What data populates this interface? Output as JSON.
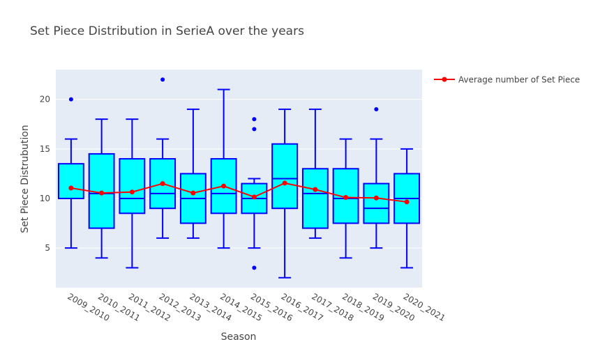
{
  "chart_data": {
    "type": "box",
    "title": "Set Piece Distribution in SerieA over the years",
    "xlabel": "Season",
    "ylabel": "Set Piece Distrubution",
    "ylim": [
      1,
      23
    ],
    "yticks": [
      5,
      10,
      15,
      20
    ],
    "grid": true,
    "legend": {
      "position": "top-right"
    },
    "categories": [
      "2009_2010",
      "2010_2011",
      "2011_2012",
      "2012_2013",
      "2013_2014",
      "2014_2015",
      "2015_2016",
      "2016_2017",
      "2017_2018",
      "2018_2019",
      "2019_2020",
      "2020_2021"
    ],
    "box_series": {
      "box_fill": "#00ffff",
      "box_line": "#0000ff",
      "boxes": [
        {
          "min": 5,
          "q1": 10,
          "median": 10,
          "q3": 13.5,
          "max": 16,
          "outliers": [
            20
          ]
        },
        {
          "min": 4,
          "q1": 7,
          "median": 10.5,
          "q3": 14.5,
          "max": 18,
          "outliers": []
        },
        {
          "min": 3,
          "q1": 8.5,
          "median": 10,
          "q3": 14,
          "max": 18,
          "outliers": []
        },
        {
          "min": 6,
          "q1": 9,
          "median": 10.5,
          "q3": 14,
          "max": 16,
          "outliers": [
            22
          ]
        },
        {
          "min": 6,
          "q1": 7.5,
          "median": 10,
          "q3": 12.5,
          "max": 19,
          "outliers": []
        },
        {
          "min": 5,
          "q1": 8.5,
          "median": 10.5,
          "q3": 14,
          "max": 21,
          "outliers": []
        },
        {
          "min": 5,
          "q1": 8.5,
          "median": 10,
          "q3": 11.5,
          "max": 12,
          "outliers": [
            18,
            17,
            3
          ]
        },
        {
          "min": 2,
          "q1": 9,
          "median": 12,
          "q3": 15.5,
          "max": 19,
          "outliers": []
        },
        {
          "min": 6,
          "q1": 7,
          "median": 10.5,
          "q3": 13,
          "max": 19,
          "outliers": []
        },
        {
          "min": 4,
          "q1": 7.5,
          "median": 10,
          "q3": 13,
          "max": 16,
          "outliers": []
        },
        {
          "min": 5,
          "q1": 7.5,
          "median": 9,
          "q3": 11.5,
          "max": 16,
          "outliers": [
            19
          ]
        },
        {
          "min": 3,
          "q1": 7.5,
          "median": 10,
          "q3": 12.5,
          "max": 15,
          "outliers": []
        }
      ]
    },
    "series": [
      {
        "name": "Average number of Set Piece",
        "type": "line",
        "color": "#ff0000",
        "values": [
          11.05,
          10.55,
          10.65,
          11.5,
          10.55,
          11.25,
          10.15,
          11.55,
          10.9,
          10.1,
          10.05,
          9.65
        ]
      }
    ]
  }
}
